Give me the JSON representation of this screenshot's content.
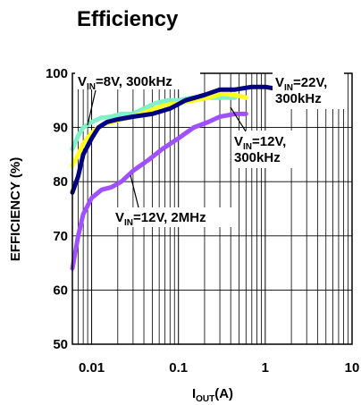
{
  "chart_data": {
    "type": "line",
    "title": "Efficiency",
    "xlabel": {
      "main": "I",
      "sub": "OUT",
      "tail": "(A)"
    },
    "ylabel": "EFFICIENCY (%)",
    "x_scale": "log",
    "xlim": [
      0.006,
      10
    ],
    "ylim": [
      50,
      100
    ],
    "x_ticks": [
      {
        "value": 0.01,
        "label": "0.01"
      },
      {
        "value": 0.1,
        "label": "0.1"
      },
      {
        "value": 1,
        "label": "1"
      },
      {
        "value": 10,
        "label": "10"
      }
    ],
    "y_ticks": [
      {
        "value": 50,
        "label": "50"
      },
      {
        "value": 60,
        "label": "60"
      },
      {
        "value": 70,
        "label": "70"
      },
      {
        "value": 80,
        "label": "80"
      },
      {
        "value": 90,
        "label": "90"
      },
      {
        "value": 100,
        "label": "100"
      }
    ],
    "grid": true,
    "series": [
      {
        "color": "#80f0c8",
        "x": [
          0.006,
          0.007,
          0.008,
          0.01,
          0.013,
          0.017,
          0.022,
          0.03,
          0.04,
          0.055,
          0.075,
          0.1,
          0.14,
          0.2,
          0.3,
          0.45
        ],
        "y": [
          86,
          88.5,
          90,
          91,
          91.8,
          92,
          92.5,
          92.5,
          93.5,
          94.5,
          95,
          95,
          95.5,
          95.5,
          95.5,
          95.5
        ]
      },
      {
        "color": "#ffff20",
        "x": [
          0.006,
          0.007,
          0.008,
          0.01,
          0.013,
          0.017,
          0.022,
          0.03,
          0.045,
          0.065,
          0.1,
          0.15,
          0.22,
          0.32,
          0.45,
          0.6
        ],
        "y": [
          83,
          85,
          87,
          89,
          90.5,
          91,
          91.5,
          92,
          93,
          94,
          94.5,
          95,
          95.5,
          96.2,
          96,
          95.5
        ]
      },
      {
        "color": "#000080",
        "x": [
          0.006,
          0.007,
          0.008,
          0.01,
          0.012,
          0.015,
          0.02,
          0.03,
          0.05,
          0.08,
          0.12,
          0.2,
          0.3,
          0.45,
          0.7,
          1,
          1.5
        ],
        "y": [
          78,
          81,
          85,
          88,
          90,
          91,
          91.5,
          92,
          92.5,
          93.5,
          95,
          96,
          97,
          97,
          97.5,
          97.5,
          97
        ]
      },
      {
        "color": "#a050ff",
        "x": [
          0.006,
          0.007,
          0.008,
          0.01,
          0.013,
          0.017,
          0.022,
          0.03,
          0.045,
          0.065,
          0.1,
          0.15,
          0.22,
          0.3,
          0.45,
          0.6
        ],
        "y": [
          64,
          70,
          74,
          77,
          78.5,
          79,
          80,
          82,
          84,
          86,
          88,
          90,
          91,
          92,
          92.5,
          92.5
        ]
      }
    ],
    "annotations": [
      {
        "main": "V",
        "sub": "IN",
        "rest": "=8V, 300kHz",
        "rest2": ""
      },
      {
        "main": "V",
        "sub": "IN",
        "rest": "=22V,",
        "rest2": "300kHz"
      },
      {
        "main": "V",
        "sub": "IN",
        "rest": "=12V,",
        "rest2": "300kHz"
      },
      {
        "main": "V",
        "sub": "IN",
        "rest": "=12V, 2MHz",
        "rest2": ""
      }
    ]
  }
}
